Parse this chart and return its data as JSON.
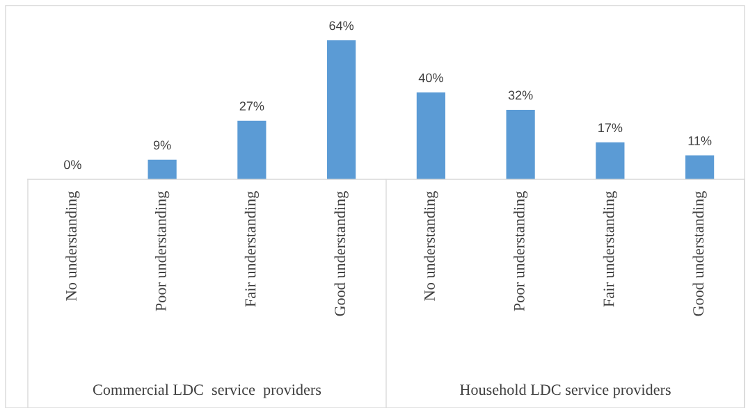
{
  "chart_data": {
    "type": "bar",
    "categories": [
      "No understanding",
      "Poor understanding",
      "Fair understanding",
      "Good understanding",
      "No understanding",
      "Poor understanding",
      "Fair understanding",
      "Good understanding"
    ],
    "values": [
      0,
      9,
      27,
      64,
      40,
      32,
      17,
      11
    ],
    "value_labels": [
      "0%",
      "9%",
      "27%",
      "64%",
      "40%",
      "32%",
      "17%",
      "11%"
    ],
    "color": "#5b9bd5",
    "annotations": [
      "Commercial LDC  service  providers",
      "Household LDC service providers"
    ]
  }
}
